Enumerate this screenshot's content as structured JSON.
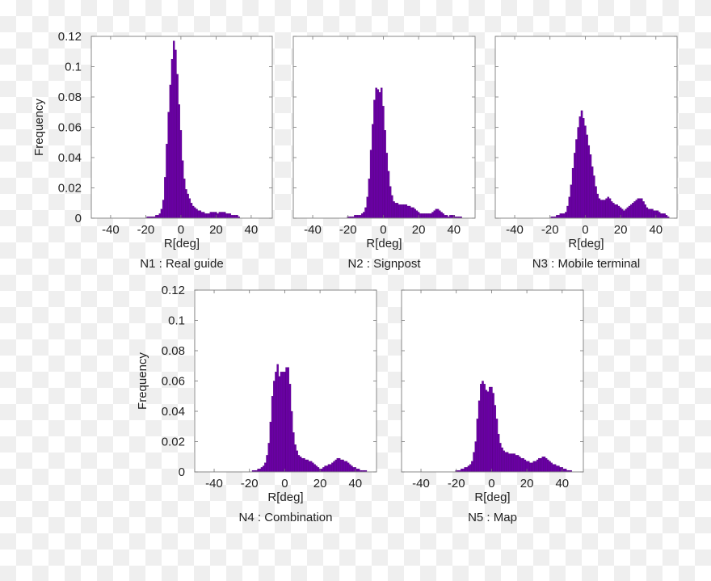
{
  "bar_color": "#6b00a6",
  "bar_edge_color": "#4a0072",
  "chart_data": [
    {
      "type": "bar",
      "title": "N1 : Real guide",
      "xlabel": "R[deg]",
      "ylabel": "Frequency",
      "xlim": [
        -51,
        52
      ],
      "ylim": [
        0,
        0.12
      ],
      "xticks": [
        -40,
        -20,
        0,
        20,
        40
      ],
      "yticks": [
        0,
        0.02,
        0.04,
        0.06,
        0.08,
        0.1,
        0.12
      ],
      "ytick_labels": [
        "0",
        "0.02",
        "0.04",
        "0.06",
        "0.08",
        "0.1",
        "0.12"
      ],
      "bin_width": 1,
      "x": [
        -20,
        -19,
        -18,
        -17,
        -16,
        -15,
        -14,
        -13,
        -12,
        -11,
        -10,
        -9,
        -8,
        -7,
        -6,
        -5,
        -4,
        -3,
        -2,
        -1,
        0,
        1,
        2,
        3,
        4,
        5,
        6,
        7,
        8,
        9,
        10,
        11,
        12,
        13,
        14,
        15,
        16,
        17,
        18,
        19,
        20,
        21,
        22,
        23,
        24,
        25,
        26,
        27,
        28,
        29,
        30,
        31,
        32,
        33,
        34,
        35,
        36,
        37,
        38,
        39,
        40,
        41,
        42,
        43,
        44,
        45,
        46,
        47
      ],
      "values": [
        0,
        0.001,
        0.001,
        0.001,
        0.001,
        0.001,
        0.002,
        0.002,
        0.003,
        0.006,
        0.012,
        0.027,
        0.049,
        0.07,
        0.088,
        0.105,
        0.117,
        0.111,
        0.095,
        0.075,
        0.058,
        0.038,
        0.026,
        0.019,
        0.016,
        0.013,
        0.01,
        0.008,
        0.007,
        0.006,
        0.005,
        0.005,
        0.004,
        0.004,
        0.003,
        0.003,
        0.003,
        0.004,
        0.004,
        0.004,
        0.004,
        0.003,
        0.004,
        0.004,
        0.004,
        0.004,
        0.003,
        0.003,
        0.003,
        0.002,
        0.002,
        0.002,
        0.002,
        0.001,
        0,
        0,
        0,
        0,
        0,
        0,
        0,
        0,
        0,
        0,
        0,
        0,
        0,
        0
      ]
    },
    {
      "type": "bar",
      "title": "N2 : Signpost",
      "xlabel": "R[deg]",
      "ylabel": "",
      "xlim": [
        -51,
        52
      ],
      "ylim": [
        0,
        0.12
      ],
      "xticks": [
        -40,
        -20,
        0,
        20,
        40
      ],
      "yticks": [
        0,
        0.02,
        0.04,
        0.06,
        0.08,
        0.1,
        0.12
      ],
      "bin_width": 1,
      "x": [
        -20,
        -19,
        -18,
        -17,
        -16,
        -15,
        -14,
        -13,
        -12,
        -11,
        -10,
        -9,
        -8,
        -7,
        -6,
        -5,
        -4,
        -3,
        -2,
        -1,
        0,
        1,
        2,
        3,
        4,
        5,
        6,
        7,
        8,
        9,
        10,
        11,
        12,
        13,
        14,
        15,
        16,
        17,
        18,
        19,
        20,
        21,
        22,
        23,
        24,
        25,
        26,
        27,
        28,
        29,
        30,
        31,
        32,
        33,
        34,
        35,
        36,
        37,
        38,
        39,
        40,
        41,
        42,
        43,
        44,
        45,
        46,
        47
      ],
      "values": [
        0.001,
        0.001,
        0.001,
        0.001,
        0.002,
        0.002,
        0.002,
        0.002,
        0.003,
        0.004,
        0.007,
        0.014,
        0.026,
        0.045,
        0.062,
        0.078,
        0.086,
        0.085,
        0.083,
        0.086,
        0.074,
        0.058,
        0.043,
        0.031,
        0.021,
        0.015,
        0.011,
        0.01,
        0.01,
        0.009,
        0.009,
        0.009,
        0.009,
        0.009,
        0.008,
        0.008,
        0.007,
        0.007,
        0.006,
        0.005,
        0.004,
        0.003,
        0.003,
        0.003,
        0.003,
        0.003,
        0.003,
        0.003,
        0.004,
        0.005,
        0.006,
        0.006,
        0.005,
        0.004,
        0.003,
        0.002,
        0.002,
        0.001,
        0.002,
        0.002,
        0.002,
        0.001,
        0.001,
        0.001,
        0.001,
        0,
        0,
        0
      ]
    },
    {
      "type": "bar",
      "title": "N3 : Mobile terminal",
      "xlabel": "R[deg]",
      "ylabel": "",
      "xlim": [
        -51,
        52
      ],
      "ylim": [
        0,
        0.12
      ],
      "xticks": [
        -40,
        -20,
        0,
        20,
        40
      ],
      "yticks": [
        0,
        0.02,
        0.04,
        0.06,
        0.08,
        0.1,
        0.12
      ],
      "bin_width": 1,
      "x": [
        -20,
        -19,
        -18,
        -17,
        -16,
        -15,
        -14,
        -13,
        -12,
        -11,
        -10,
        -9,
        -8,
        -7,
        -6,
        -5,
        -4,
        -3,
        -2,
        -1,
        0,
        1,
        2,
        3,
        4,
        5,
        6,
        7,
        8,
        9,
        10,
        11,
        12,
        13,
        14,
        15,
        16,
        17,
        18,
        19,
        20,
        21,
        22,
        23,
        24,
        25,
        26,
        27,
        28,
        29,
        30,
        31,
        32,
        33,
        34,
        35,
        36,
        37,
        38,
        39,
        40,
        41,
        42,
        43,
        44,
        45,
        46,
        47
      ],
      "values": [
        0,
        0.001,
        0.001,
        0.001,
        0.002,
        0.002,
        0.003,
        0.003,
        0.003,
        0.004,
        0.008,
        0.014,
        0.022,
        0.033,
        0.043,
        0.052,
        0.06,
        0.067,
        0.071,
        0.066,
        0.061,
        0.055,
        0.048,
        0.042,
        0.034,
        0.028,
        0.021,
        0.016,
        0.013,
        0.012,
        0.012,
        0.012,
        0.013,
        0.014,
        0.013,
        0.011,
        0.01,
        0.009,
        0.009,
        0.008,
        0.007,
        0.006,
        0.005,
        0.006,
        0.007,
        0.008,
        0.009,
        0.01,
        0.011,
        0.012,
        0.013,
        0.013,
        0.013,
        0.011,
        0.009,
        0.007,
        0.006,
        0.006,
        0.006,
        0.005,
        0.005,
        0.005,
        0.004,
        0.003,
        0.003,
        0.003,
        0.002,
        0.001
      ]
    },
    {
      "type": "bar",
      "title": "N4 : Combination",
      "xlabel": "R[deg]",
      "ylabel": "Frequency",
      "xlim": [
        -51,
        52
      ],
      "ylim": [
        0,
        0.12
      ],
      "xticks": [
        -40,
        -20,
        0,
        20,
        40
      ],
      "yticks": [
        0,
        0.02,
        0.04,
        0.06,
        0.08,
        0.1,
        0.12
      ],
      "ytick_labels": [
        "0",
        "0.02",
        "0.04",
        "0.06",
        "0.08",
        "0.1",
        "0.12"
      ],
      "bin_width": 1,
      "x": [
        -20,
        -19,
        -18,
        -17,
        -16,
        -15,
        -14,
        -13,
        -12,
        -11,
        -10,
        -9,
        -8,
        -7,
        -6,
        -5,
        -4,
        -3,
        -2,
        -1,
        0,
        1,
        2,
        3,
        4,
        5,
        6,
        7,
        8,
        9,
        10,
        11,
        12,
        13,
        14,
        15,
        16,
        17,
        18,
        19,
        20,
        21,
        22,
        23,
        24,
        25,
        26,
        27,
        28,
        29,
        30,
        31,
        32,
        33,
        34,
        35,
        36,
        37,
        38,
        39,
        40,
        41,
        42,
        43,
        44,
        45,
        46,
        47
      ],
      "values": [
        0,
        0,
        0.001,
        0.001,
        0.001,
        0.002,
        0.002,
        0.003,
        0.004,
        0.006,
        0.011,
        0.019,
        0.033,
        0.05,
        0.06,
        0.066,
        0.071,
        0.063,
        0.066,
        0.066,
        0.066,
        0.069,
        0.069,
        0.058,
        0.04,
        0.026,
        0.018,
        0.014,
        0.011,
        0.01,
        0.009,
        0.009,
        0.008,
        0.008,
        0.007,
        0.007,
        0.006,
        0.005,
        0.004,
        0.003,
        0.002,
        0.002,
        0.003,
        0.004,
        0.004,
        0.005,
        0.005,
        0.006,
        0.007,
        0.008,
        0.009,
        0.009,
        0.008,
        0.008,
        0.007,
        0.007,
        0.006,
        0.005,
        0.004,
        0.003,
        0.003,
        0.002,
        0.002,
        0.001,
        0.001,
        0.001,
        0.001,
        0
      ]
    },
    {
      "type": "bar",
      "title": "N5 : Map",
      "xlabel": "R[deg]",
      "ylabel": "",
      "xlim": [
        -51,
        52
      ],
      "ylim": [
        0,
        0.12
      ],
      "xticks": [
        -40,
        -20,
        0,
        20,
        40
      ],
      "yticks": [
        0,
        0.02,
        0.04,
        0.06,
        0.08,
        0.1,
        0.12
      ],
      "bin_width": 1,
      "x": [
        -20,
        -19,
        -18,
        -17,
        -16,
        -15,
        -14,
        -13,
        -12,
        -11,
        -10,
        -9,
        -8,
        -7,
        -6,
        -5,
        -4,
        -3,
        -2,
        -1,
        0,
        1,
        2,
        3,
        4,
        5,
        6,
        7,
        8,
        9,
        10,
        11,
        12,
        13,
        14,
        15,
        16,
        17,
        18,
        19,
        20,
        21,
        22,
        23,
        24,
        25,
        26,
        27,
        28,
        29,
        30,
        31,
        32,
        33,
        34,
        35,
        36,
        37,
        38,
        39,
        40,
        41,
        42,
        43,
        44,
        45,
        46,
        47
      ],
      "values": [
        0.001,
        0.001,
        0.001,
        0.002,
        0.002,
        0.003,
        0.003,
        0.004,
        0.005,
        0.007,
        0.013,
        0.02,
        0.035,
        0.047,
        0.058,
        0.06,
        0.058,
        0.054,
        0.053,
        0.056,
        0.056,
        0.052,
        0.044,
        0.035,
        0.025,
        0.019,
        0.016,
        0.014,
        0.013,
        0.013,
        0.012,
        0.012,
        0.012,
        0.012,
        0.011,
        0.011,
        0.01,
        0.009,
        0.009,
        0.008,
        0.007,
        0.007,
        0.006,
        0.006,
        0.007,
        0.007,
        0.008,
        0.009,
        0.009,
        0.01,
        0.01,
        0.009,
        0.008,
        0.007,
        0.006,
        0.005,
        0.005,
        0.004,
        0.004,
        0.003,
        0.003,
        0.002,
        0.002,
        0.001,
        0.001,
        0.001,
        0,
        0
      ]
    }
  ]
}
